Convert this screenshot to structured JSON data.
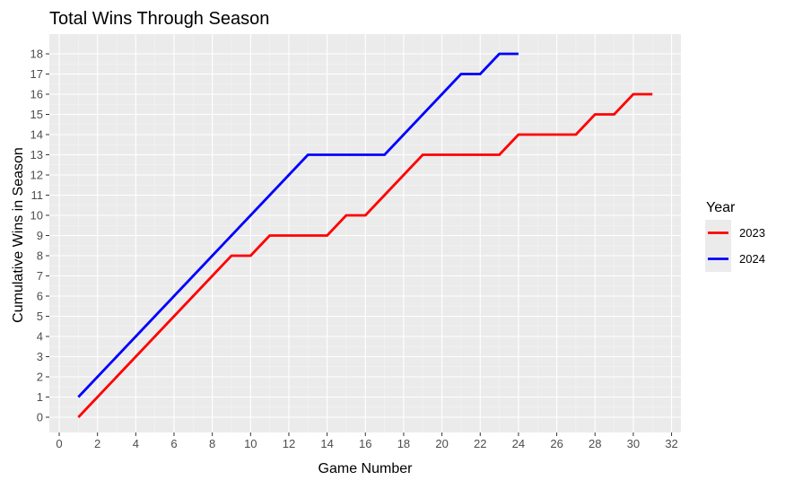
{
  "chart_data": {
    "type": "line",
    "title": "Total Wins Through Season",
    "xlabel": "Game Number",
    "ylabel": "Cumulative Wins in Season",
    "xlim": [
      0,
      32
    ],
    "ylim": [
      0,
      18
    ],
    "xticks": [
      0,
      2,
      4,
      6,
      8,
      10,
      12,
      14,
      16,
      18,
      20,
      22,
      24,
      26,
      28,
      30,
      32
    ],
    "yticks": [
      0,
      1,
      2,
      3,
      4,
      5,
      6,
      7,
      8,
      9,
      10,
      11,
      12,
      13,
      14,
      15,
      16,
      17,
      18
    ],
    "grid": true,
    "legend": {
      "title": "Year",
      "position": "right"
    },
    "series": [
      {
        "name": "2023",
        "color": "#ff0000",
        "x": [
          1,
          2,
          3,
          4,
          5,
          6,
          7,
          8,
          9,
          10,
          11,
          12,
          13,
          14,
          15,
          16,
          17,
          18,
          19,
          20,
          21,
          22,
          23,
          24,
          25,
          26,
          27,
          28,
          29,
          30,
          31
        ],
        "y": [
          0,
          1,
          2,
          3,
          4,
          5,
          6,
          7,
          8,
          8,
          9,
          9,
          9,
          9,
          10,
          10,
          11,
          12,
          13,
          13,
          13,
          13,
          13,
          14,
          14,
          14,
          14,
          15,
          15,
          16,
          16
        ]
      },
      {
        "name": "2024",
        "color": "#0000ff",
        "x": [
          1,
          2,
          3,
          4,
          5,
          6,
          7,
          8,
          9,
          10,
          11,
          12,
          13,
          14,
          15,
          16,
          17,
          18,
          19,
          20,
          21,
          22,
          23,
          24
        ],
        "y": [
          1,
          2,
          3,
          4,
          5,
          6,
          7,
          8,
          9,
          10,
          11,
          12,
          13,
          13,
          13,
          13,
          13,
          14,
          15,
          16,
          17,
          17,
          18,
          18
        ]
      }
    ]
  }
}
